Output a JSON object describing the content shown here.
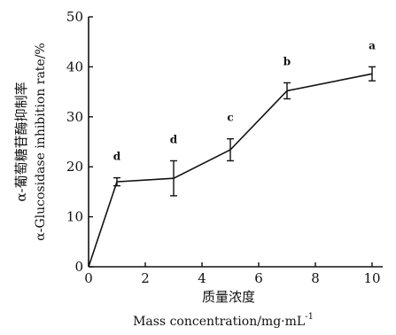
{
  "chart_data": {
    "type": "line",
    "title": "",
    "xlabel_cn": "质量浓度",
    "xlabel_en": "Mass  concentration/mg·mL",
    "xlabel_en_sup": "-1",
    "ylabel_cn": "α-葡萄糖苷酶抑制率",
    "ylabel_en": "α-Glucosidase  inhibition  rate/%",
    "xlim": [
      0,
      10
    ],
    "ylim": [
      0,
      50
    ],
    "x_ticks": [
      0,
      2,
      4,
      6,
      8,
      10
    ],
    "y_ticks": [
      0,
      10,
      20,
      30,
      40,
      50
    ],
    "grid": false,
    "series": [
      {
        "x": [
          0,
          1,
          3,
          5,
          7,
          10
        ],
        "y": [
          0,
          17,
          17.7,
          23.4,
          35.2,
          38.6
        ],
        "error": [
          0,
          0.8,
          3.5,
          2.2,
          1.6,
          1.4
        ],
        "labels": [
          "",
          "d",
          "d",
          "c",
          "b",
          "a"
        ]
      }
    ]
  }
}
